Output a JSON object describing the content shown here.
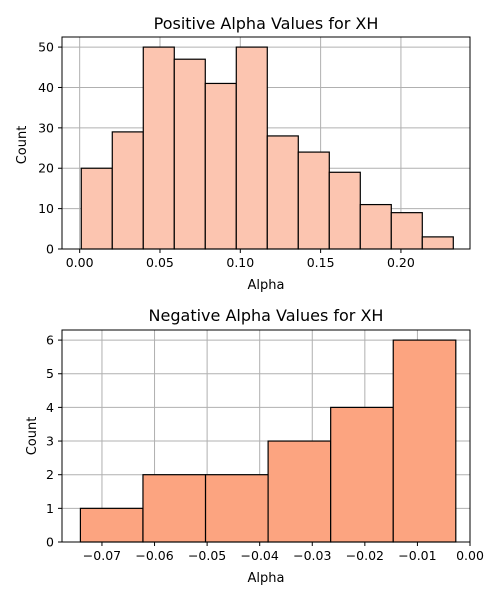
{
  "chart_data": [
    {
      "type": "bar",
      "title": "Positive Alpha Values for XH",
      "xlabel": "Alpha",
      "ylabel": "Count",
      "xlim": [
        -0.011,
        0.243
      ],
      "ylim": [
        0,
        52.5
      ],
      "xticks": [
        0.0,
        0.05,
        0.1,
        0.15,
        0.2
      ],
      "xtick_labels": [
        "0.00",
        "0.05",
        "0.10",
        "0.15",
        "0.20"
      ],
      "yticks": [
        0,
        10,
        20,
        30,
        40,
        50
      ],
      "ytick_labels": [
        "0",
        "10",
        "20",
        "30",
        "40",
        "50"
      ],
      "bins": [
        {
          "x0": 0.001,
          "x1": 0.0203,
          "count": 20
        },
        {
          "x0": 0.0203,
          "x1": 0.0396,
          "count": 29
        },
        {
          "x0": 0.0396,
          "x1": 0.0589,
          "count": 50
        },
        {
          "x0": 0.0589,
          "x1": 0.0782,
          "count": 47
        },
        {
          "x0": 0.0782,
          "x1": 0.0975,
          "count": 41
        },
        {
          "x0": 0.0975,
          "x1": 0.1168,
          "count": 50
        },
        {
          "x0": 0.1168,
          "x1": 0.1361,
          "count": 28
        },
        {
          "x0": 0.1361,
          "x1": 0.1554,
          "count": 24
        },
        {
          "x0": 0.1554,
          "x1": 0.1747,
          "count": 19
        },
        {
          "x0": 0.1747,
          "x1": 0.194,
          "count": 11
        },
        {
          "x0": 0.194,
          "x1": 0.2133,
          "count": 9
        },
        {
          "x0": 0.2133,
          "x1": 0.2326,
          "count": 3
        }
      ],
      "grid": true,
      "bar_color": "#fcc5b0",
      "edge_color": "#000000"
    },
    {
      "type": "bar",
      "title": "Negative Alpha Values for XH",
      "xlabel": "Alpha",
      "ylabel": "Count",
      "xlim": [
        -0.0776,
        0.0
      ],
      "ylim": [
        0,
        6.3
      ],
      "xticks": [
        -0.07,
        -0.06,
        -0.05,
        -0.04,
        -0.03,
        -0.02,
        -0.01,
        0.0
      ],
      "xtick_labels": [
        "−0.07",
        "−0.06",
        "−0.05",
        "−0.04",
        "−0.03",
        "−0.02",
        "−0.01",
        "0.00"
      ],
      "yticks": [
        0,
        1,
        2,
        3,
        4,
        5,
        6
      ],
      "ytick_labels": [
        "0",
        "1",
        "2",
        "3",
        "4",
        "5",
        "6"
      ],
      "bins": [
        {
          "x0": -0.0741,
          "x1": -0.0622,
          "count": 1
        },
        {
          "x0": -0.0622,
          "x1": -0.0503,
          "count": 2
        },
        {
          "x0": -0.0503,
          "x1": -0.0384,
          "count": 2
        },
        {
          "x0": -0.0384,
          "x1": -0.0265,
          "count": 3
        },
        {
          "x0": -0.0265,
          "x1": -0.0146,
          "count": 4
        },
        {
          "x0": -0.0146,
          "x1": -0.0027,
          "count": 6
        }
      ],
      "grid": true,
      "bar_color": "#fca480",
      "edge_color": "#000000"
    }
  ]
}
